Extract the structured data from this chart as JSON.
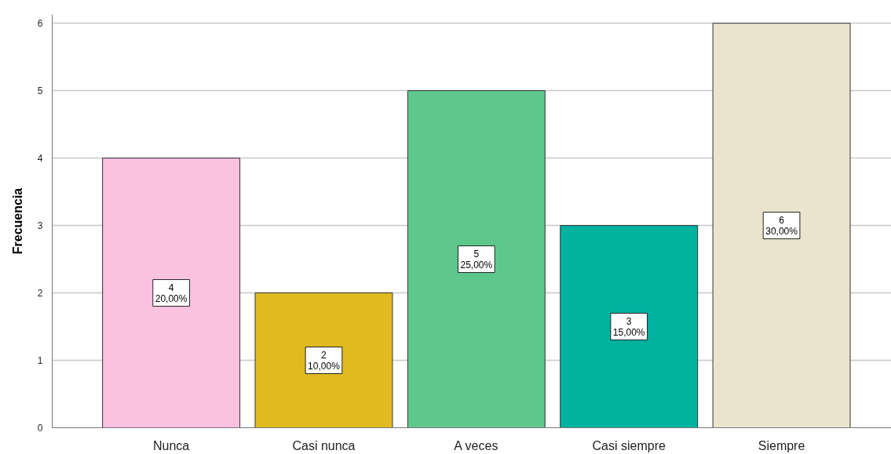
{
  "chart_data": {
    "type": "bar",
    "ylabel": "Frecuencia",
    "categories": [
      "Nunca",
      "Casi nunca",
      "A veces",
      "Casi siempre",
      "Siempre"
    ],
    "values": [
      4,
      2,
      5,
      3,
      6
    ],
    "colors": [
      "#fbc1e0",
      "#e0bb20",
      "#5ec88c",
      "#01b29f",
      "#ebe4cd"
    ],
    "value_labels": [
      "4\n20,00%",
      "2\n10,00%",
      "5\n25,00%",
      "3\n15,00%",
      "6\n30,00%"
    ],
    "ylim": [
      0,
      6.13
    ],
    "yticks": [
      0,
      1,
      2,
      3,
      4,
      5,
      6
    ],
    "grid": "y"
  }
}
